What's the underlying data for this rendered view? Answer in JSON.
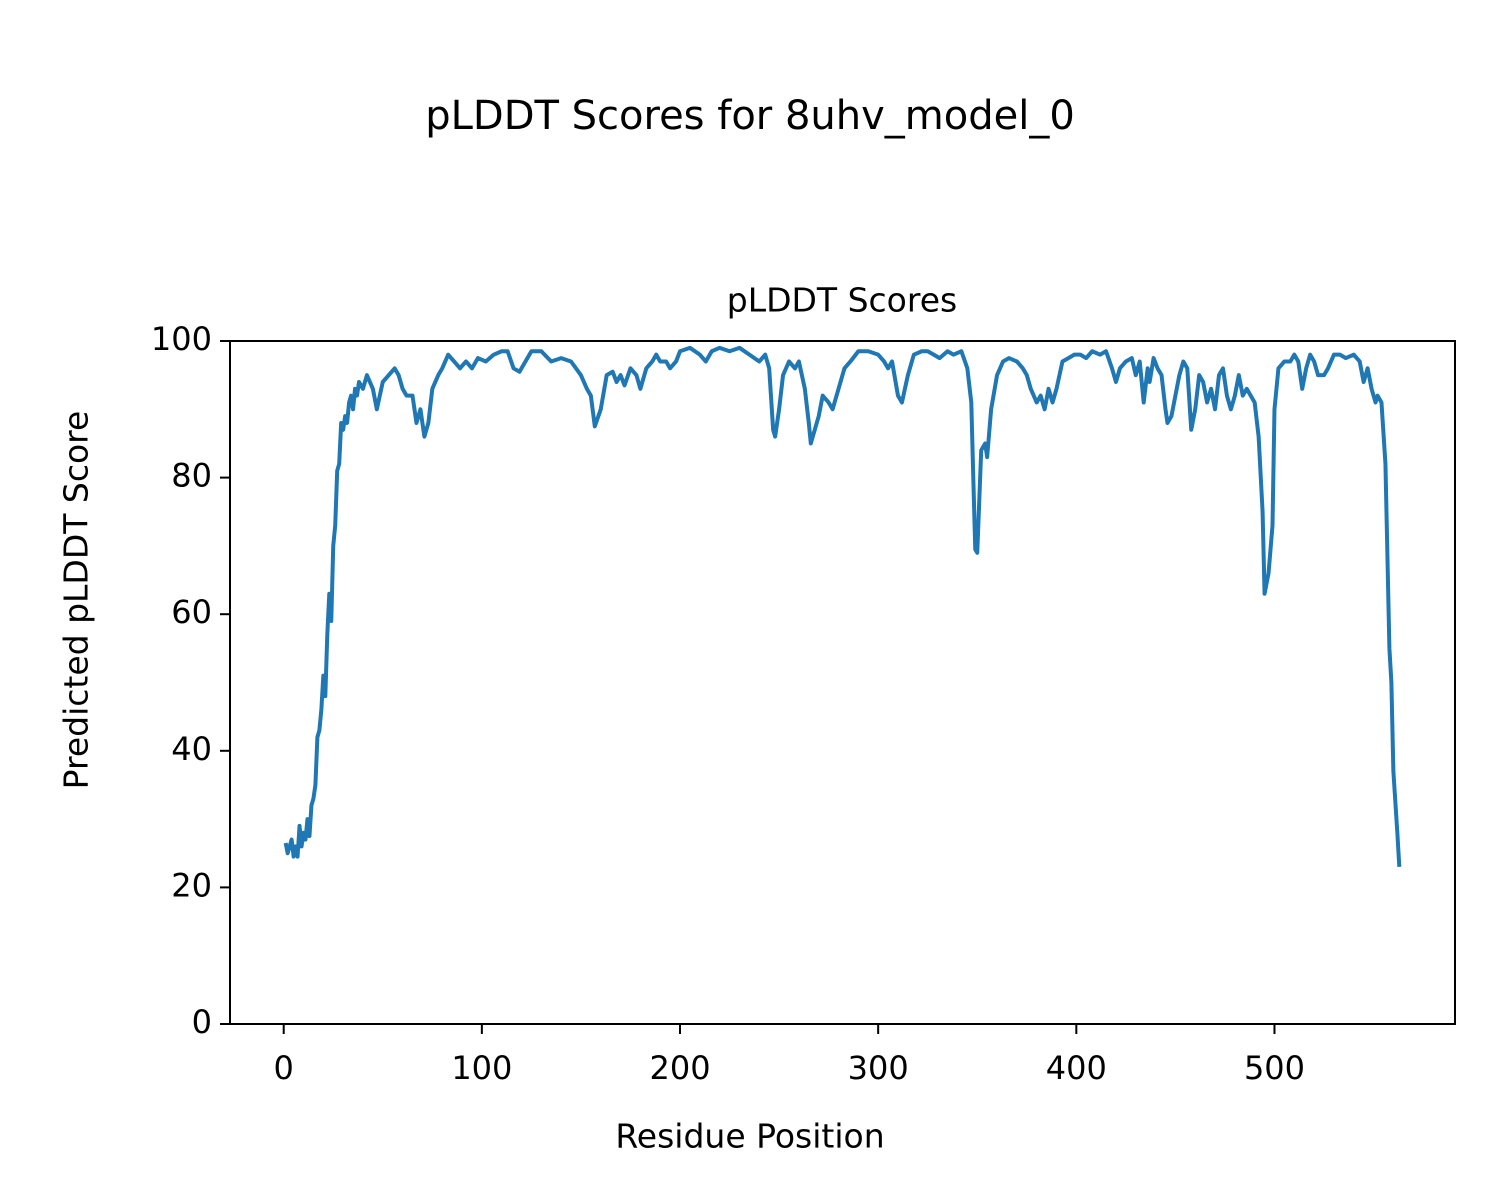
{
  "chart_data": {
    "type": "line",
    "title": "pLDDT Scores for 8uhv_model_0",
    "subtitle": "pLDDT Scores",
    "x_label": "Residue Position",
    "y_label": "Predicted pLDDT Score",
    "xlim": [
      -27.1,
      591.1
    ],
    "ylim": [
      0,
      100
    ],
    "xticks": [
      0,
      100,
      200,
      300,
      400,
      500
    ],
    "yticks": [
      0,
      20,
      40,
      60,
      80,
      100
    ],
    "grid": false,
    "series": [
      {
        "name": "pLDDT",
        "color": "#1f77b4",
        "x": [
          1,
          2,
          3,
          4,
          5,
          6,
          7,
          8,
          9,
          10,
          11,
          12,
          13,
          14,
          15,
          16,
          17,
          18,
          19,
          20,
          21,
          22,
          23,
          24,
          25,
          26,
          27,
          28,
          29,
          30,
          31,
          32,
          33,
          34,
          35,
          36,
          37,
          38,
          40,
          42,
          45,
          47,
          50,
          53,
          56,
          58,
          60,
          62,
          65,
          67,
          69,
          71,
          73,
          75,
          78,
          80,
          83,
          86,
          89,
          92,
          95,
          98,
          102,
          106,
          110,
          113,
          116,
          119,
          122,
          125,
          130,
          135,
          140,
          145,
          150,
          153,
          155,
          157,
          160,
          163,
          166,
          168,
          170,
          172,
          175,
          178,
          180,
          183,
          186,
          188,
          190,
          193,
          195,
          198,
          200,
          205,
          210,
          213,
          216,
          220,
          225,
          230,
          235,
          240,
          243,
          245,
          247,
          248,
          250,
          252,
          255,
          258,
          260,
          263,
          265,
          266,
          268,
          270,
          272,
          275,
          277,
          280,
          283,
          286,
          290,
          295,
          300,
          303,
          305,
          307,
          310,
          312,
          315,
          318,
          322,
          325,
          328,
          331,
          335,
          338,
          342,
          345,
          347,
          348,
          349,
          350,
          352,
          354,
          355,
          357,
          360,
          363,
          366,
          370,
          373,
          375,
          377,
          380,
          382,
          384,
          386,
          388,
          390,
          393,
          396,
          399,
          402,
          405,
          408,
          412,
          415,
          418,
          420,
          422,
          425,
          428,
          430,
          432,
          434,
          436,
          437,
          439,
          441,
          443,
          445,
          446,
          448,
          450,
          452,
          454,
          456,
          458,
          460,
          462,
          464,
          466,
          468,
          470,
          472,
          474,
          476,
          478,
          480,
          482,
          484,
          486,
          488,
          490,
          492,
          494,
          495,
          497,
          499,
          500,
          502,
          505,
          508,
          510,
          512,
          514,
          516,
          518,
          520,
          522,
          525,
          527,
          530,
          533,
          536,
          540,
          543,
          545,
          547,
          549,
          550,
          551,
          552,
          554,
          556,
          558,
          559,
          560,
          562,
          563
        ],
        "values": [
          26.5,
          25,
          26,
          27,
          24.5,
          26,
          24.5,
          29,
          26,
          28,
          27,
          30,
          27.5,
          32,
          33,
          35,
          42,
          43,
          46,
          51,
          48,
          57,
          63,
          59,
          70,
          73,
          81,
          82,
          88,
          87,
          89,
          88,
          91,
          92,
          90,
          93,
          92,
          94,
          93,
          95,
          93,
          90,
          94,
          95,
          96,
          95,
          93,
          92,
          92,
          88,
          90,
          86,
          88,
          93,
          95,
          96,
          98,
          97,
          96,
          97,
          96,
          97.5,
          97,
          98,
          98.5,
          98.5,
          96,
          95.5,
          97,
          98.5,
          98.5,
          97,
          97.5,
          97,
          95,
          93,
          92,
          87.5,
          90,
          95,
          95.5,
          94,
          95,
          93.5,
          96,
          95,
          93,
          96,
          97,
          98,
          97,
          97,
          96,
          97,
          98.5,
          99,
          98,
          97,
          98.5,
          99,
          98.5,
          99,
          98,
          97,
          98,
          96,
          87,
          86,
          90,
          95,
          97,
          96,
          97,
          93,
          88,
          85,
          87,
          89,
          92,
          91,
          90,
          93,
          96,
          97,
          98.5,
          98.5,
          98,
          97,
          96,
          97,
          92,
          91,
          95,
          98,
          98.5,
          98.5,
          98,
          97.5,
          98.5,
          98,
          98.5,
          96,
          91,
          80,
          69.5,
          69,
          84,
          85,
          83,
          90,
          95,
          97,
          97.5,
          97,
          96,
          95,
          93,
          91,
          92,
          90,
          93,
          91,
          93,
          97,
          97.5,
          98,
          98,
          97.5,
          98.5,
          98,
          98.5,
          96,
          94,
          96,
          97,
          97.5,
          95,
          97,
          91,
          96,
          94,
          97.5,
          96,
          95,
          90,
          88,
          89,
          92,
          95,
          97,
          96,
          87,
          90,
          95,
          94,
          91,
          93,
          90,
          95,
          96,
          92,
          90,
          92,
          95,
          92,
          93,
          92,
          91,
          86,
          75,
          63,
          66,
          73,
          90,
          96,
          97,
          97,
          98,
          97,
          93,
          96,
          98,
          97,
          95,
          95,
          96,
          98,
          98,
          97.5,
          98,
          97,
          94,
          96,
          93,
          92,
          91,
          92,
          91,
          82,
          55,
          50,
          37,
          28,
          23
        ]
      }
    ]
  }
}
